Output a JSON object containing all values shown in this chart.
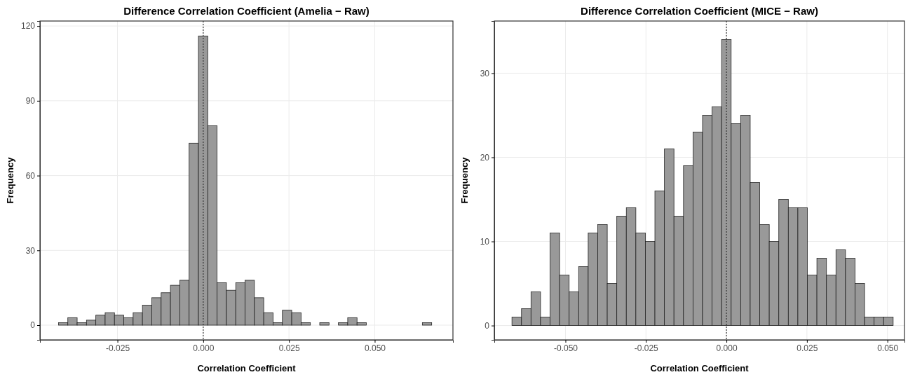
{
  "chart_data": [
    {
      "type": "histogram",
      "title": "Difference Correlation Coefficient (Amelia − Raw)",
      "xlabel": "Correlation Coefficient",
      "ylabel": "Frequency",
      "bins": [
        -0.0422,
        -0.03948,
        -0.03676,
        -0.03404,
        -0.03132,
        -0.0286,
        -0.02588,
        -0.02316,
        -0.02044,
        -0.01772,
        -0.015,
        -0.01228,
        -0.00956,
        -0.00684,
        -0.00412,
        -0.0014,
        0.00132,
        0.00404,
        0.00676,
        0.00948,
        0.0122,
        0.01492,
        0.01764,
        0.02036,
        0.02308,
        0.0258,
        0.02852,
        0.03124,
        0.03396,
        0.03668,
        0.0394,
        0.04212,
        0.04484,
        0.04756,
        0.05028,
        0.053,
        0.05572,
        0.05844,
        0.06116,
        0.06388,
        0.0666
      ],
      "values": [
        1,
        3,
        1,
        2,
        4,
        5,
        4,
        3,
        5,
        8,
        11,
        13,
        16,
        18,
        73,
        116,
        80,
        17,
        14,
        17,
        18,
        11,
        5,
        1,
        6,
        5,
        1,
        0,
        1,
        0,
        1,
        3,
        1,
        0,
        0,
        0,
        0,
        0,
        0,
        1
      ],
      "color": "#999999",
      "xlim": [
        -0.0476,
        0.0728
      ],
      "xticks": [
        {
          "value": -0.025,
          "label": "-0.025"
        },
        {
          "value": 0,
          "label": "0.000"
        },
        {
          "value": 0.025,
          "label": "0.025"
        },
        {
          "value": 0.05,
          "label": "0.050"
        }
      ],
      "ylim": [
        -5.9,
        122
      ],
      "yticks": [
        0,
        30,
        60,
        90,
        120
      ],
      "grid": true,
      "ref_lines": [
        {
          "axis": "x",
          "value": 0,
          "label": null,
          "color": "#333333",
          "line_style": "dotted"
        }
      ]
    },
    {
      "type": "histogram",
      "title": "Difference Correlation Coefficient (MICE − Raw)",
      "xlabel": "Correlation Coefficient",
      "ylabel": "Frequency",
      "bins": [
        -0.06662,
        -0.06366,
        -0.0607,
        -0.05774,
        -0.05478,
        -0.05182,
        -0.04886,
        -0.0459,
        -0.04294,
        -0.03998,
        -0.03702,
        -0.03406,
        -0.0311,
        -0.02814,
        -0.02518,
        -0.02222,
        -0.01926,
        -0.0163,
        -0.01334,
        -0.01038,
        -0.00742,
        -0.00446,
        -0.0015,
        0.00146,
        0.00442,
        0.00738,
        0.01034,
        0.0133,
        0.01626,
        0.01922,
        0.02218,
        0.02514,
        0.0281,
        0.03106,
        0.03402,
        0.03698,
        0.03994,
        0.0429,
        0.04586,
        0.04882,
        0.05178
      ],
      "values": [
        1,
        2,
        4,
        1,
        11,
        6,
        4,
        7,
        11,
        12,
        5,
        13,
        14,
        11,
        10,
        16,
        21,
        13,
        19,
        23,
        25,
        26,
        34,
        24,
        25,
        17,
        12,
        10,
        15,
        14,
        14,
        6,
        8,
        6,
        9,
        8,
        5,
        1,
        1,
        1
      ],
      "color": "#999999",
      "xlim": [
        -0.0721,
        0.0553
      ],
      "xticks": [
        {
          "value": -0.05,
          "label": "-0.050"
        },
        {
          "value": -0.025,
          "label": "-0.025"
        },
        {
          "value": 0,
          "label": "0.000"
        },
        {
          "value": 0.025,
          "label": "0.025"
        },
        {
          "value": 0.05,
          "label": "0.050"
        }
      ],
      "ylim": [
        -1.7,
        36.2
      ],
      "yticks": [
        0,
        10,
        20,
        30
      ],
      "grid": true,
      "ref_lines": [
        {
          "axis": "x",
          "value": 0,
          "label": null,
          "color": "#333333",
          "line_style": "dotted"
        }
      ]
    }
  ]
}
